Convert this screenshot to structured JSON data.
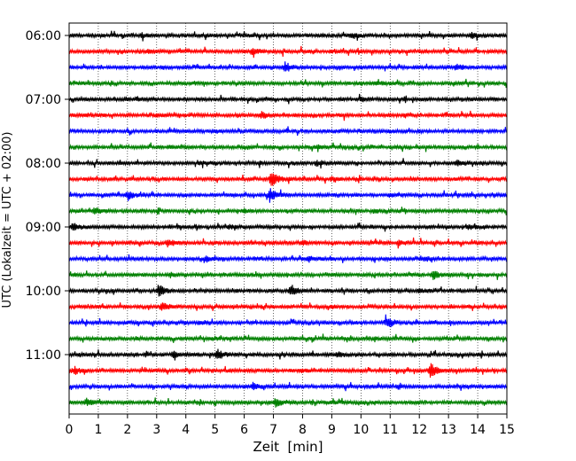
{
  "chart_data": {
    "type": "line",
    "title": "",
    "xlabel": "Zeit  [min]",
    "ylabel": "UTC (Lokalzeit = UTC + 02:00)",
    "xlim": [
      0,
      15
    ],
    "xticks": [
      0,
      1,
      2,
      3,
      4,
      5,
      6,
      7,
      8,
      9,
      10,
      11,
      12,
      13,
      14,
      15
    ],
    "yticks": [
      "06:00",
      "07:00",
      "08:00",
      "09:00",
      "10:00",
      "11:00"
    ],
    "grid": "vertical dotted lines at each minute",
    "trace_interval_minutes": 15,
    "trace_colors": [
      "#000000",
      "#ff0000",
      "#0000ff",
      "#008000"
    ],
    "traces": [
      {
        "start": "06:00",
        "events": [
          [
            2.5,
            0.25
          ],
          [
            9.7,
            0.3
          ],
          [
            13.8,
            0.35
          ]
        ]
      },
      {
        "start": "06:15",
        "events": [
          [
            2.7,
            0.2
          ],
          [
            6.3,
            0.55
          ],
          [
            9.0,
            0.15
          ]
        ]
      },
      {
        "start": "06:30",
        "events": [
          [
            3.2,
            0.15
          ],
          [
            7.4,
            0.6
          ],
          [
            13.3,
            0.35
          ]
        ]
      },
      {
        "start": "06:45",
        "events": [
          [
            4.2,
            0.15
          ],
          [
            10.5,
            0.2
          ]
        ]
      },
      {
        "start": "07:00",
        "events": [
          [
            2.3,
            0.2
          ],
          [
            10.0,
            0.2
          ]
        ]
      },
      {
        "start": "07:15",
        "events": [
          [
            3.0,
            0.2
          ],
          [
            6.6,
            0.4
          ],
          [
            11.5,
            0.15
          ]
        ]
      },
      {
        "start": "07:30",
        "events": [
          [
            5.0,
            0.15
          ],
          [
            11.0,
            0.15
          ]
        ]
      },
      {
        "start": "07:45",
        "events": [
          [
            3.5,
            0.15
          ],
          [
            8.5,
            0.15
          ]
        ]
      },
      {
        "start": "08:00",
        "events": [
          [
            4.5,
            0.2
          ],
          [
            8.5,
            0.3
          ],
          [
            13.3,
            0.3
          ]
        ]
      },
      {
        "start": "08:15",
        "events": [
          [
            6.95,
            1.0
          ],
          [
            9.0,
            0.2
          ]
        ]
      },
      {
        "start": "08:30",
        "events": [
          [
            2.0,
            0.55
          ],
          [
            6.9,
            0.9
          ],
          [
            11.0,
            0.2
          ]
        ]
      },
      {
        "start": "08:45",
        "events": [
          [
            0.9,
            0.45
          ],
          [
            6.0,
            0.2
          ],
          [
            10.5,
            0.2
          ]
        ]
      },
      {
        "start": "09:00",
        "events": [
          [
            0.15,
            0.5
          ],
          [
            5.5,
            0.2
          ],
          [
            13.7,
            0.3
          ]
        ]
      },
      {
        "start": "09:15",
        "events": [
          [
            3.4,
            0.5
          ],
          [
            8.0,
            0.2
          ],
          [
            11.3,
            0.3
          ]
        ]
      },
      {
        "start": "09:30",
        "events": [
          [
            4.7,
            0.35
          ],
          [
            8.2,
            0.3
          ],
          [
            12.2,
            0.2
          ]
        ]
      },
      {
        "start": "09:45",
        "events": [
          [
            3.5,
            0.2
          ],
          [
            12.5,
            0.65
          ],
          [
            9.0,
            0.15
          ]
        ]
      },
      {
        "start": "10:00",
        "events": [
          [
            3.1,
            0.65
          ],
          [
            7.6,
            0.8
          ],
          [
            12.0,
            0.2
          ]
        ]
      },
      {
        "start": "10:15",
        "events": [
          [
            3.2,
            0.5
          ],
          [
            9.0,
            0.15
          ]
        ]
      },
      {
        "start": "10:30",
        "events": [
          [
            4.5,
            0.15
          ],
          [
            10.9,
            0.75
          ]
        ]
      },
      {
        "start": "10:45",
        "events": [
          [
            4.8,
            0.15
          ],
          [
            10.5,
            0.2
          ]
        ]
      },
      {
        "start": "11:00",
        "events": [
          [
            3.6,
            0.4
          ],
          [
            5.1,
            0.6
          ],
          [
            9.2,
            0.25
          ]
        ]
      },
      {
        "start": "11:15",
        "events": [
          [
            0.2,
            0.5
          ],
          [
            12.4,
            1.0
          ],
          [
            8.0,
            0.15
          ]
        ]
      },
      {
        "start": "11:30",
        "events": [
          [
            6.3,
            0.45
          ],
          [
            11.3,
            0.2
          ]
        ]
      },
      {
        "start": "11:45",
        "events": [
          [
            0.6,
            0.4
          ],
          [
            7.1,
            0.55
          ],
          [
            9.0,
            0.2
          ]
        ]
      }
    ]
  }
}
